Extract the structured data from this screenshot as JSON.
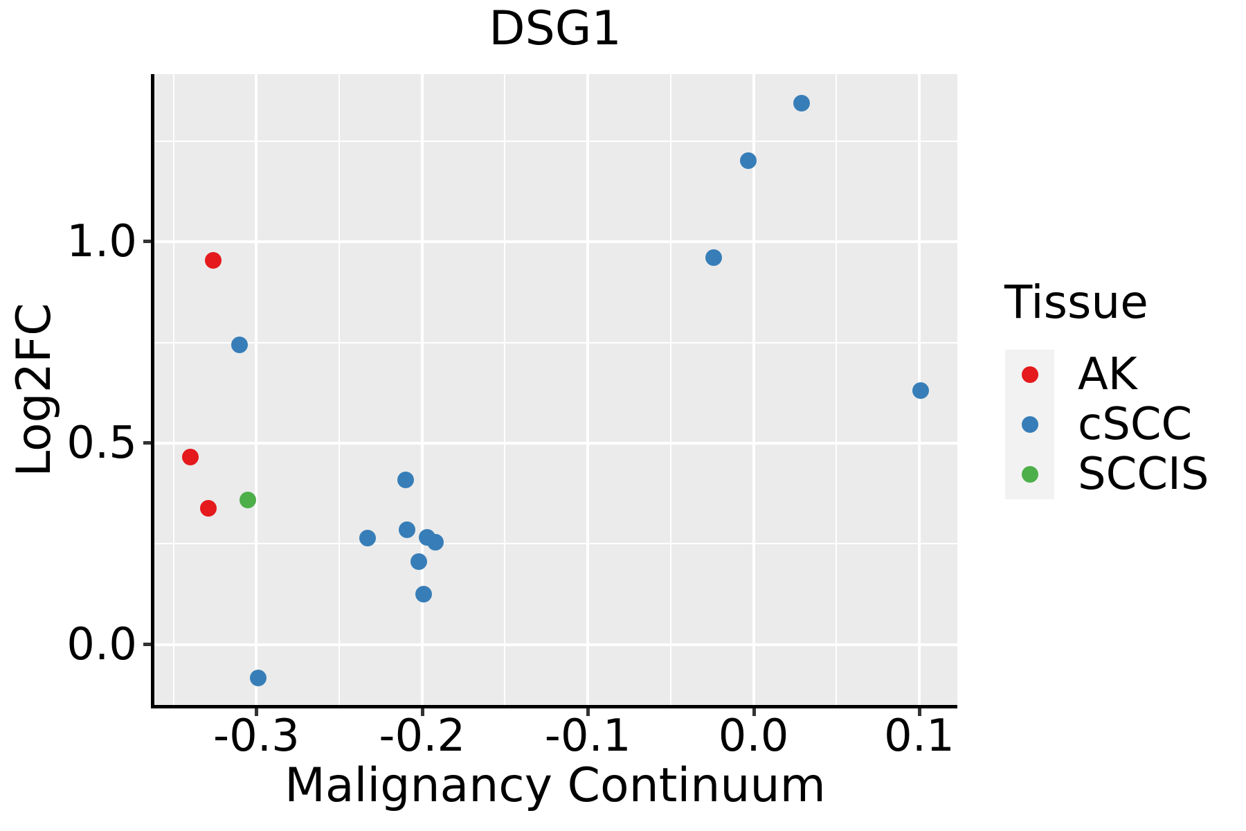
{
  "chart_data": {
    "type": "scatter",
    "title": "DSG1",
    "xlabel": "Malignancy Continuum",
    "ylabel": "Log2FC",
    "xlim": [
      -0.362,
      0.123
    ],
    "ylim": [
      -0.153,
      1.416
    ],
    "grid": true,
    "x_major_ticks": [
      {
        "v": -0.3,
        "label": "-0.3"
      },
      {
        "v": -0.2,
        "label": "-0.2"
      },
      {
        "v": -0.1,
        "label": "-0.1"
      },
      {
        "v": 0.0,
        "label": "0.0"
      },
      {
        "v": 0.1,
        "label": "0.1"
      }
    ],
    "x_minor_ticks": [
      -0.35,
      -0.25,
      -0.15,
      -0.05,
      0.05
    ],
    "y_major_ticks": [
      {
        "v": 0.0,
        "label": "0.0"
      },
      {
        "v": 0.5,
        "label": "0.5"
      },
      {
        "v": 1.0,
        "label": "1.0"
      }
    ],
    "y_minor_ticks": [
      0.25,
      0.75,
      1.25
    ],
    "legend": {
      "title": "Tissue",
      "position": "right",
      "entries": [
        {
          "label": "AK",
          "color": "#e41a1c"
        },
        {
          "label": "cSCC",
          "color": "#377eb8"
        },
        {
          "label": "SCCIS",
          "color": "#4daf4a"
        }
      ]
    },
    "series": [
      {
        "name": "AK",
        "color": "#e41a1c",
        "points": [
          [
            -0.326,
            0.954
          ],
          [
            -0.34,
            0.466
          ],
          [
            -0.329,
            0.338
          ]
        ]
      },
      {
        "name": "cSCC",
        "color": "#377eb8",
        "points": [
          [
            -0.31,
            0.744
          ],
          [
            -0.299,
            -0.082
          ],
          [
            -0.233,
            0.265
          ],
          [
            -0.21,
            0.409
          ],
          [
            -0.209,
            0.285
          ],
          [
            -0.202,
            0.206
          ],
          [
            -0.199,
            0.125
          ],
          [
            -0.197,
            0.266
          ],
          [
            -0.192,
            0.254
          ],
          [
            -0.024,
            0.96
          ],
          [
            -0.003,
            1.201
          ],
          [
            0.029,
            1.344
          ],
          [
            0.101,
            0.631
          ]
        ]
      },
      {
        "name": "SCCIS",
        "color": "#4daf4a",
        "points": [
          [
            -0.305,
            0.359
          ]
        ]
      }
    ],
    "colors": {
      "panel_background": "#ebebeb",
      "gridline": "#ffffff",
      "axis_line": "#000000",
      "tick": "#333333",
      "text": "#000000",
      "legend_key_background": "#f2f2f2"
    }
  }
}
